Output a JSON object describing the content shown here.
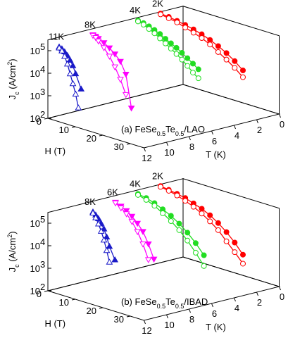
{
  "chart_data": [
    {
      "type": "line3d",
      "title": [
        "(a) FeSe",
        "0.5",
        "Te",
        "0.5",
        "/LAO"
      ],
      "title_style": [
        "",
        "sub",
        "",
        "sub",
        ""
      ],
      "ylabel": [
        "J",
        "c",
        " (A/cm",
        "2",
        ")"
      ],
      "ylabel_style": [
        "",
        "sub",
        "",
        "sup",
        ""
      ],
      "xlabel": "H (T)",
      "tlabel": "T (K)",
      "xlim": [
        0,
        35
      ],
      "xticks": [
        0,
        10,
        20,
        30
      ],
      "tlim": [
        0,
        12
      ],
      "tticks": [
        0,
        2,
        4,
        6,
        8,
        10,
        12
      ],
      "ylim": [
        100,
        300000
      ],
      "ylog": true,
      "yticks": [
        {
          "value": 100,
          "label": "10",
          "sup": "2"
        },
        {
          "value": 1000,
          "label": "10",
          "sup": "3"
        },
        {
          "value": 10000,
          "label": "10",
          "sup": "4"
        },
        {
          "value": 100000,
          "label": "10",
          "sup": "5"
        }
      ],
      "groups": [
        {
          "name": "11K",
          "T": 11,
          "color": "#1a1ac8",
          "marker": "triangle-up",
          "series": [
            {
              "filled": true,
              "x": [
                0,
                1,
                2,
                3,
                4,
                5,
                6,
                8
              ],
              "values": [
                110000,
                100000,
                80000,
                60000,
                40000,
                25000,
                12000,
                3000
              ]
            },
            {
              "filled": false,
              "x": [
                0,
                1,
                2,
                3,
                4,
                5,
                6,
                7
              ],
              "values": [
                100000,
                80000,
                50000,
                25000,
                10000,
                4000,
                1500,
                400
              ]
            }
          ]
        },
        {
          "name": "8K",
          "T": 8,
          "color": "#ff00ff",
          "marker": "triangle-down",
          "series": [
            {
              "filled": true,
              "x": [
                0,
                1,
                2,
                4,
                6,
                8,
                10,
                12,
                14
              ],
              "values": [
                160000,
                150000,
                130000,
                100000,
                70000,
                45000,
                25000,
                8000,
                300
              ]
            },
            {
              "filled": false,
              "x": [
                0,
                1,
                2,
                4,
                6,
                8,
                10,
                12
              ],
              "values": [
                150000,
                130000,
                100000,
                60000,
                30000,
                12000,
                4000,
                1000
              ]
            }
          ]
        },
        {
          "name": "4K",
          "T": 4,
          "color": "#22dd22",
          "marker": "circle",
          "series": [
            {
              "filled": true,
              "x": [
                0,
                2,
                4,
                6,
                8,
                10,
                12,
                14,
                16,
                18,
                20,
                22
              ],
              "values": [
                220000,
                200000,
                170000,
                140000,
                110000,
                80000,
                60000,
                45000,
                32000,
                22000,
                15000,
                10000
              ]
            },
            {
              "filled": false,
              "x": [
                0,
                2,
                4,
                6,
                8,
                10,
                12,
                14,
                16,
                18,
                20,
                22
              ],
              "values": [
                200000,
                170000,
                130000,
                100000,
                70000,
                50000,
                35000,
                24000,
                16000,
                10000,
                6000,
                4000
              ]
            }
          ]
        },
        {
          "name": "2K",
          "T": 2,
          "color": "#ff0000",
          "marker": "circle",
          "series": [
            {
              "filled": true,
              "x": [
                0,
                3,
                6,
                9,
                12,
                15,
                18,
                21,
                24,
                27,
                30
              ],
              "values": [
                250000,
                230000,
                200000,
                170000,
                140000,
                110000,
                80000,
                55000,
                35000,
                20000,
                10000
              ]
            },
            {
              "filled": false,
              "x": [
                0,
                3,
                6,
                9,
                12,
                15,
                18,
                21,
                24,
                27,
                30
              ],
              "values": [
                230000,
                200000,
                170000,
                130000,
                100000,
                75000,
                50000,
                30000,
                18000,
                10000,
                5000
              ]
            }
          ]
        }
      ]
    },
    {
      "type": "line3d",
      "title": [
        "(b) FeSe",
        "0.5",
        "Te",
        "0.5",
        "/IBAD"
      ],
      "title_style": [
        "",
        "sub",
        "",
        "sub",
        ""
      ],
      "ylabel": [
        "J",
        "c",
        " (A/cm",
        "2",
        ")"
      ],
      "ylabel_style": [
        "",
        "sub",
        "",
        "sup",
        ""
      ],
      "xlabel": "H (T)",
      "tlabel": "T (K)",
      "xlim": [
        0,
        35
      ],
      "xticks": [
        0,
        10,
        20,
        30
      ],
      "tlim": [
        0,
        12
      ],
      "tticks": [
        0,
        2,
        4,
        6,
        8,
        10,
        12
      ],
      "ylim": [
        100,
        300000
      ],
      "ylog": true,
      "yticks": [
        {
          "value": 100,
          "label": "10",
          "sup": "2"
        },
        {
          "value": 1000,
          "label": "10",
          "sup": "3"
        },
        {
          "value": 10000,
          "label": "10",
          "sup": "4"
        },
        {
          "value": 100000,
          "label": "10",
          "sup": "5"
        }
      ],
      "groups": [
        {
          "name": "8K",
          "T": 8,
          "color": "#1a1ac8",
          "marker": "triangle-up",
          "series": [
            {
              "filled": true,
              "x": [
                0,
                1,
                2,
                3,
                4,
                5,
                6,
                8
              ],
              "values": [
                100000,
                80000,
                60000,
                40000,
                25000,
                12000,
                5000,
                1500
              ]
            },
            {
              "filled": false,
              "x": [
                0,
                1,
                2,
                3,
                4,
                5,
                6
              ],
              "values": [
                90000,
                60000,
                35000,
                18000,
                8000,
                3000,
                1000
              ]
            }
          ]
        },
        {
          "name": "6K",
          "T": 6,
          "color": "#ff00ff",
          "marker": "triangle-down",
          "series": [
            {
              "filled": true,
              "x": [
                0,
                2,
                4,
                6,
                8,
                10,
                12,
                14
              ],
              "values": [
                150000,
                120000,
                90000,
                60000,
                35000,
                18000,
                6000,
                1500
              ]
            },
            {
              "filled": false,
              "x": [
                0,
                2,
                4,
                6,
                8,
                10,
                12
              ],
              "values": [
                140000,
                100000,
                65000,
                35000,
                15000,
                5000,
                1200
              ]
            }
          ]
        },
        {
          "name": "4K",
          "T": 4,
          "color": "#22dd22",
          "marker": "circle",
          "series": [
            {
              "filled": true,
              "x": [
                0,
                3,
                6,
                9,
                12,
                15,
                18,
                21,
                24
              ],
              "values": [
                200000,
                170000,
                130000,
                90000,
                60000,
                35000,
                18000,
                8000,
                3000
              ]
            },
            {
              "filled": false,
              "x": [
                0,
                3,
                6,
                9,
                12,
                15,
                18,
                21,
                24
              ],
              "values": [
                180000,
                140000,
                100000,
                60000,
                35000,
                18000,
                8000,
                3000,
                1000
              ]
            }
          ]
        },
        {
          "name": "2K",
          "T": 2,
          "color": "#ff0000",
          "marker": "circle",
          "series": [
            {
              "filled": true,
              "x": [
                0,
                3,
                6,
                9,
                12,
                15,
                18,
                21,
                24,
                27,
                30
              ],
              "values": [
                250000,
                220000,
                190000,
                160000,
                120000,
                90000,
                60000,
                35000,
                18000,
                8000,
                3000
              ]
            },
            {
              "filled": false,
              "x": [
                0,
                3,
                6,
                9,
                12,
                15,
                18,
                21,
                24,
                27,
                30
              ],
              "values": [
                230000,
                200000,
                160000,
                120000,
                85000,
                55000,
                32000,
                17000,
                7000,
                3000,
                1200
              ]
            }
          ]
        }
      ]
    }
  ]
}
